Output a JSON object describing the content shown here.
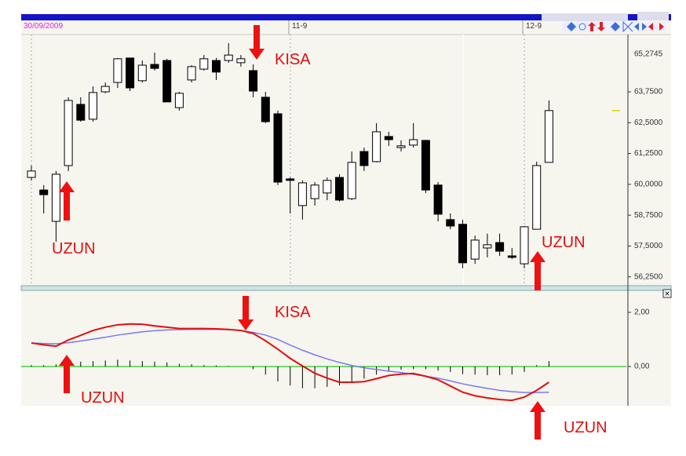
{
  "chart_data": [
    {
      "type": "candlestick",
      "date_labels": [
        "30/09/2009",
        "11-9",
        "12-9"
      ],
      "annotations": [
        "KISA",
        "UZUN",
        "UZUN"
      ],
      "open": [
        60.28,
        59.77,
        58.5,
        60.76,
        63.24,
        62.64,
        63.75,
        64.13,
        65.12,
        64.2,
        64.86,
        65.02,
        63.11,
        64.23,
        64.67,
        65.02,
        65.02,
        64.93,
        64.61,
        63.53,
        62.86,
        60.22,
        59.14,
        59.42,
        59.65,
        60.28,
        59.42,
        61.33,
        60.92,
        61.94,
        61.49,
        61.59,
        61.78,
        59.97,
        58.57,
        58.38,
        56.97,
        57.42,
        57.64,
        57.1,
        56.78,
        58.18,
        60.89
      ],
      "high": [
        60.76,
        59.97,
        60.54,
        63.53,
        63.53,
        63.97,
        64.13,
        65.12,
        65.12,
        65.02,
        65.34,
        65.09,
        63.75,
        64.83,
        65.24,
        65.12,
        65.72,
        65.24,
        64.86,
        63.75,
        62.99,
        60.28,
        60.16,
        60.09,
        60.28,
        60.41,
        61.33,
        61.49,
        62.48,
        62.13,
        61.78,
        62.48,
        61.81,
        60.09,
        58.82,
        58.57,
        57.92,
        58.0,
        58.0,
        57.42,
        58.31,
        60.92,
        63.4
      ],
      "low": [
        60.16,
        58.82,
        57.67,
        60.54,
        62.54,
        62.54,
        63.69,
        63.91,
        63.78,
        64.13,
        64.61,
        63.34,
        62.99,
        64.13,
        64.61,
        64.23,
        64.93,
        64.77,
        63.53,
        62.48,
        59.97,
        58.82,
        58.57,
        59.14,
        59.36,
        59.3,
        59.36,
        60.54,
        60.89,
        61.56,
        61.33,
        61.49,
        59.65,
        58.5,
        58.18,
        56.6,
        56.78,
        57.04,
        57.1,
        56.97,
        56.6,
        58.18,
        60.89
      ],
      "close": [
        60.54,
        59.58,
        60.41,
        63.4,
        62.6,
        63.72,
        63.97,
        65.09,
        63.91,
        64.83,
        64.7,
        63.34,
        63.69,
        64.77,
        65.09,
        64.55,
        65.24,
        65.09,
        63.78,
        62.54,
        60.09,
        60.16,
        60.06,
        59.97,
        60.16,
        59.36,
        60.89,
        60.76,
        62.13,
        61.81,
        61.56,
        61.81,
        59.77,
        58.79,
        58.31,
        56.82,
        57.74,
        57.55,
        57.29,
        57.04,
        58.28,
        60.76,
        62.99
      ],
      "up_color": "#ffffff",
      "down_color": "#000000",
      "ylim": [
        55.86,
        66.04
      ],
      "yticks": [
        {
          "value": 56.25,
          "label": "56,2500"
        },
        {
          "value": 57.5,
          "label": "57,5000"
        },
        {
          "value": 58.75,
          "label": "58,7500"
        },
        {
          "value": 60,
          "label": "60,0000"
        },
        {
          "value": 61.25,
          "label": "61,2500"
        },
        {
          "value": 62.5,
          "label": "62,5000"
        },
        {
          "value": 63.75,
          "label": "63,7500"
        }
      ],
      "marker": {
        "value": 65.2745,
        "label": "65,2745",
        "color": "#e020e0"
      }
    },
    {
      "type": "line",
      "annotations": [
        "KISA",
        "UZUN",
        "UZUN"
      ],
      "series": [
        {
          "color": "#e01010",
          "values": [
            0.87,
            0.8,
            0.75,
            0.98,
            1.15,
            1.33,
            1.45,
            1.54,
            1.57,
            1.56,
            1.5,
            1.45,
            1.4,
            1.4,
            1.4,
            1.39,
            1.37,
            1.33,
            1.22,
            0.95,
            0.64,
            0.3,
            0.02,
            -0.25,
            -0.43,
            -0.58,
            -0.58,
            -0.56,
            -0.45,
            -0.33,
            -0.28,
            -0.26,
            -0.36,
            -0.49,
            -0.72,
            -0.95,
            -1.08,
            -1.16,
            -1.22,
            -1.25,
            -1.13,
            -0.88,
            -0.58
          ]
        },
        {
          "color": "#7a7aee",
          "values": [
            0.87,
            0.85,
            0.84,
            0.88,
            0.94,
            1.01,
            1.08,
            1.16,
            1.22,
            1.28,
            1.32,
            1.35,
            1.36,
            1.37,
            1.37,
            1.37,
            1.36,
            1.33,
            1.26,
            1.16,
            1.0,
            0.79,
            0.6,
            0.43,
            0.28,
            0.15,
            0.04,
            -0.05,
            -0.11,
            -0.17,
            -0.22,
            -0.29,
            -0.36,
            -0.43,
            -0.53,
            -0.64,
            -0.73,
            -0.81,
            -0.88,
            -0.93,
            -0.96,
            -0.96,
            -0.95
          ]
        }
      ],
      "histogram": {
        "color": "#000000",
        "values": [
          0.05,
          0.05,
          0.08,
          0.15,
          0.18,
          0.2,
          0.22,
          0.25,
          0.22,
          0.2,
          0.18,
          0.15,
          0.1,
          0.08,
          0.05,
          0.04,
          0.02,
          0.0,
          -0.1,
          -0.3,
          -0.55,
          -0.7,
          -0.8,
          -0.8,
          -0.75,
          -0.7,
          -0.6,
          -0.45,
          -0.3,
          -0.2,
          -0.12,
          -0.1,
          -0.1,
          -0.15,
          -0.2,
          -0.28,
          -0.3,
          -0.32,
          -0.32,
          -0.3,
          -0.2,
          0.05,
          0.2
        ]
      },
      "zero_color": "#22cc22",
      "ylim": [
        -1.45,
        2.81
      ],
      "yticks": [
        {
          "value": 0,
          "label": "0,00"
        },
        {
          "value": 2,
          "label": "2,00"
        }
      ]
    }
  ]
}
